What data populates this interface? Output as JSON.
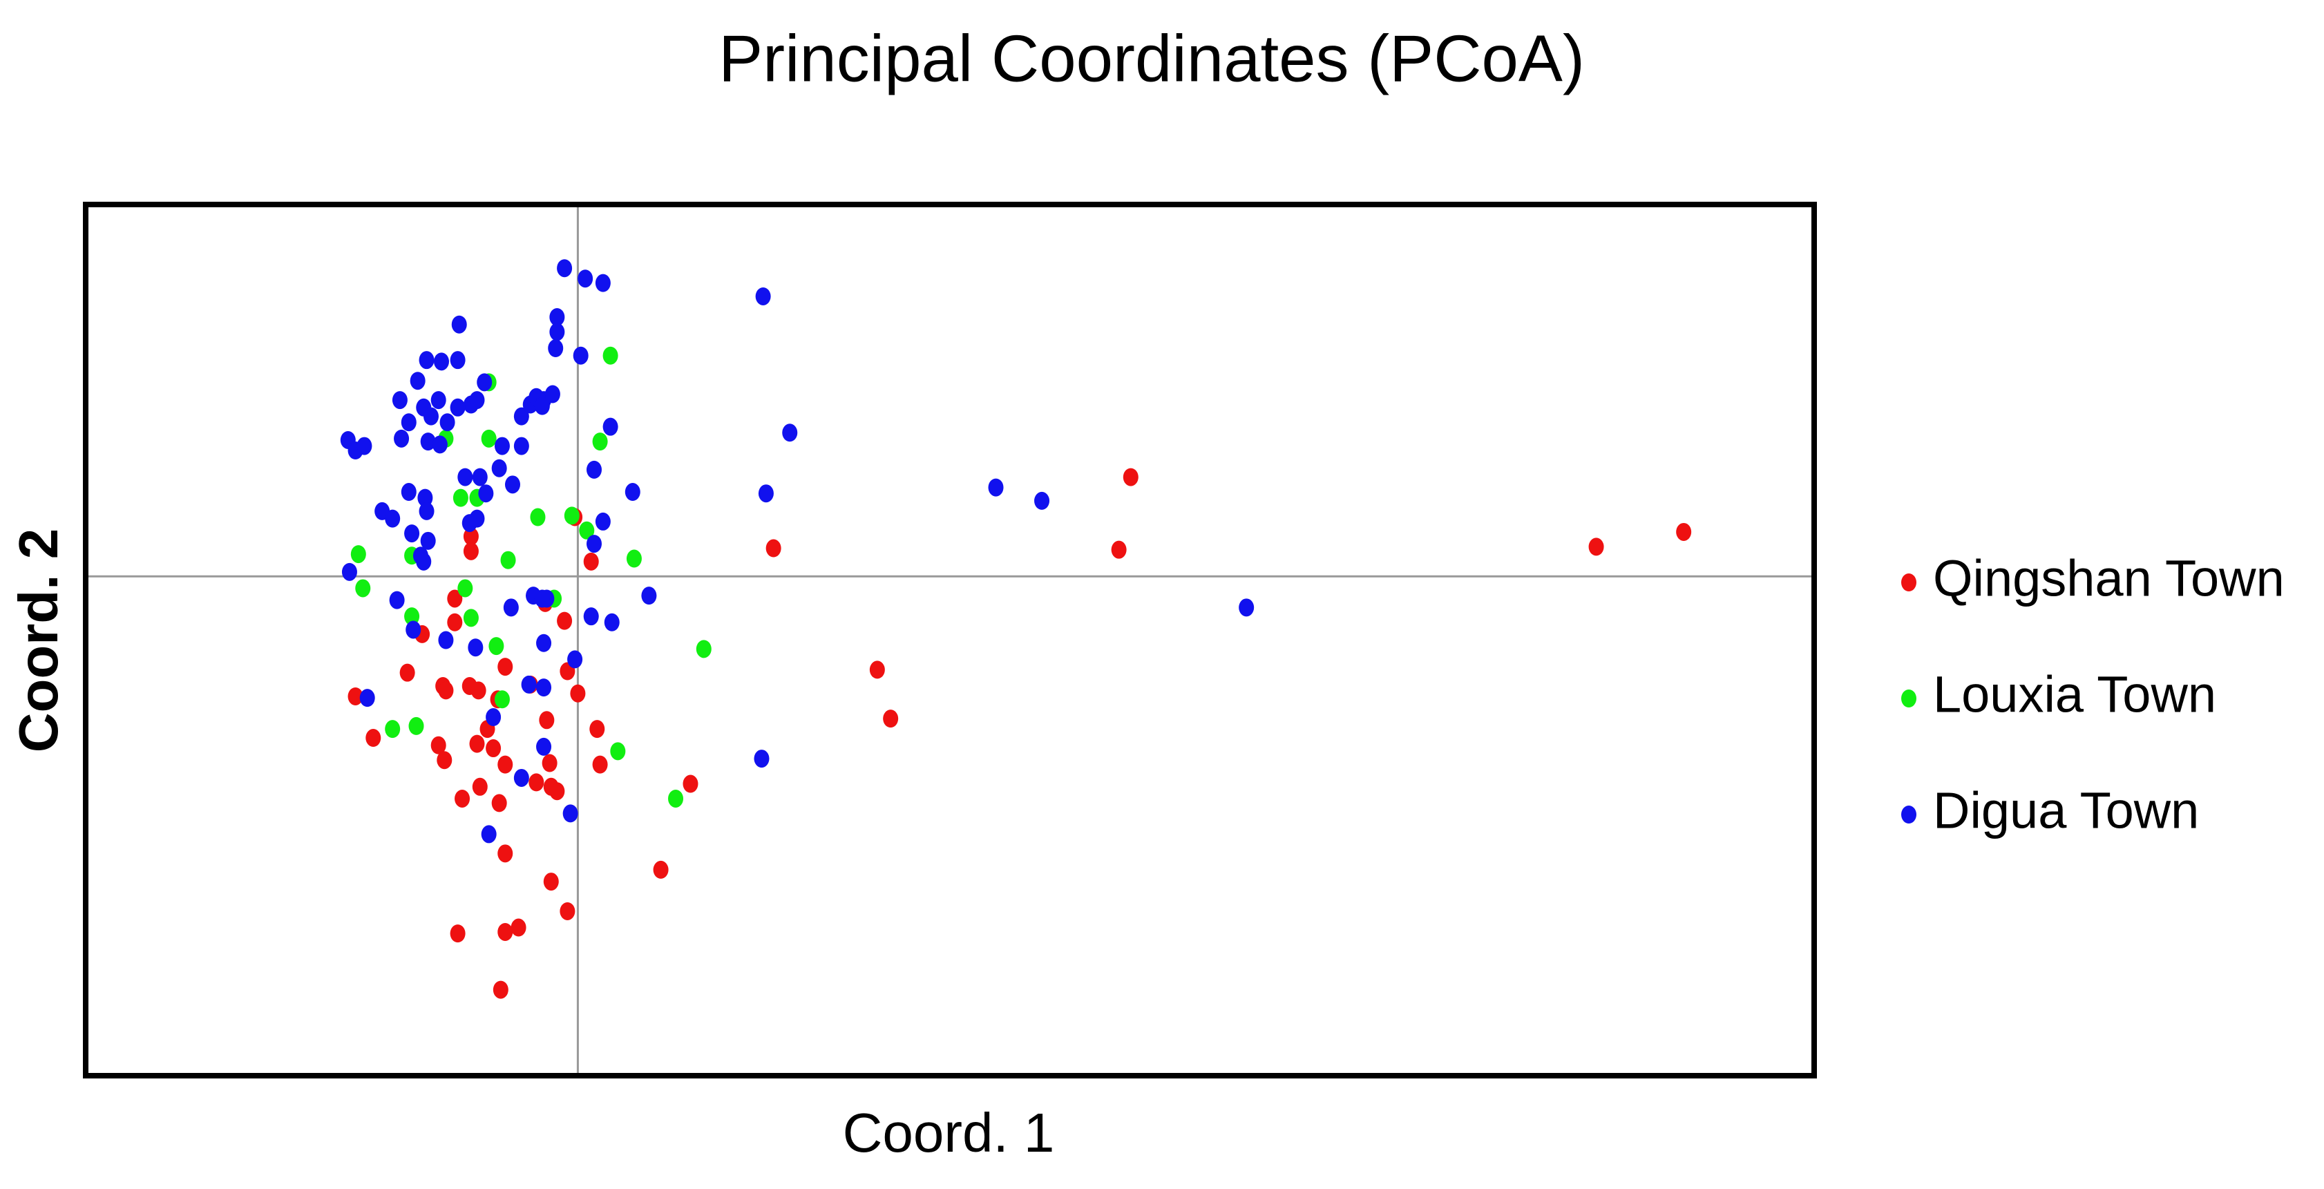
{
  "chart_data": {
    "type": "scatter",
    "title": "Principal Coordinates (PCoA)",
    "x_label": "Coord. 1",
    "y_label": "Coord. 2",
    "xlim": [
      -3.32,
      8.34
    ],
    "ylim": [
      -3.37,
      2.51
    ],
    "zero_lines": true,
    "legend": "right",
    "series": [
      {
        "name": "Qingshan Town",
        "color": "#ee1111",
        "x": [
          3.73,
          3.65,
          6.87,
          7.46,
          1.32,
          2.02,
          2.11,
          0.76,
          0.56,
          -0.72,
          -0.72,
          0.09,
          -0.02,
          -0.83,
          -0.83,
          -1.05,
          -1.15,
          -0.91,
          -0.89,
          -0.73,
          -0.67,
          -0.49,
          -0.32,
          -0.07,
          -0.09,
          0,
          -0.21,
          0.13,
          0.15,
          -0.19,
          -0.28,
          -0.18,
          -0.14,
          -0.49,
          -0.57,
          -0.68,
          -0.61,
          -0.94,
          -0.9,
          -0.78,
          -0.66,
          -0.53,
          -0.49,
          -0.18,
          -0.07,
          -0.4,
          -0.49,
          -0.81,
          -0.52,
          -1.5,
          -1.38,
          -0.22,
          -0.54
        ],
        "values": [
          0.67,
          0.18,
          0.2,
          0.3,
          0.19,
          -0.63,
          -0.96,
          -1.4,
          -1.98,
          0.27,
          0.17,
          0.1,
          0.4,
          -0.15,
          -0.31,
          -0.39,
          -0.65,
          -0.74,
          -0.77,
          -0.74,
          -0.77,
          -0.61,
          -0.73,
          -0.64,
          -0.3,
          -0.79,
          -0.97,
          -1.03,
          -1.27,
          -1.26,
          -1.39,
          -1.42,
          -1.45,
          -1.27,
          -1.16,
          -1.13,
          -1.03,
          -1.14,
          -1.24,
          -1.5,
          -1.42,
          -1.53,
          -1.87,
          -2.06,
          -2.26,
          -2.37,
          -2.4,
          -2.41,
          -2.79,
          -0.81,
          -1.09,
          -0.18,
          -0.83
        ]
      },
      {
        "name": "Louxia Town",
        "color": "#11ee11",
        "x": [
          0.22,
          -0.6,
          -0.6,
          -0.89,
          0.15,
          -0.79,
          -0.68,
          -0.27,
          -0.04,
          0.06,
          -0.47,
          0.38,
          -1.48,
          -1.12,
          -1.45,
          -0.76,
          -1.12,
          -0.72,
          -0.16,
          -0.55,
          0.85,
          -0.51,
          -1.25,
          -1.09,
          0.27,
          0.66
        ],
        "values": [
          1.49,
          1.31,
          0.93,
          0.93,
          0.91,
          0.53,
          0.53,
          0.4,
          0.41,
          0.31,
          0.11,
          0.12,
          0.15,
          0.14,
          -0.08,
          -0.08,
          -0.27,
          -0.28,
          -0.15,
          -0.47,
          -0.49,
          -0.83,
          -1.03,
          -1.01,
          -1.18,
          -1.5
        ]
      },
      {
        "name": "Digua Town",
        "color": "#1111ee",
        "x": [
          -0.09,
          0.05,
          0.17,
          1.25,
          -0.14,
          -0.14,
          -0.15,
          0.02,
          -0.8,
          -1.02,
          -0.92,
          -0.81,
          -0.63,
          -1.08,
          -1.2,
          -1.04,
          -0.94,
          -0.72,
          -0.81,
          -0.68,
          -1.14,
          -0.99,
          -0.88,
          -1.19,
          -1.01,
          -0.93,
          -1.55,
          -1.5,
          -1.44,
          -0.38,
          -0.32,
          -0.28,
          -0.23,
          -0.17,
          -0.24,
          -0.38,
          -0.51,
          -0.53,
          -0.44,
          -0.66,
          -0.76,
          -0.62,
          -1.14,
          -1.03,
          -1.32,
          -1.25,
          -1.02,
          -0.68,
          -1.12,
          -1.06,
          -1.01,
          -1.04,
          -1.54,
          -0.73,
          0.22,
          0.11,
          0.37,
          0.17,
          0.11,
          1.43,
          1.27,
          2.82,
          3.13,
          4.51,
          1.24,
          0.48,
          0.09,
          0.23,
          -0.21,
          -0.45,
          -0.3,
          -1.22,
          -1.11,
          -0.89,
          -0.69,
          -0.23,
          -0.02,
          -1.42,
          -0.23,
          -0.33,
          -0.57,
          -0.23,
          -0.38,
          -0.05,
          -0.6,
          -0.24
        ],
        "values": [
          2.08,
          2.01,
          1.98,
          1.89,
          1.75,
          1.65,
          1.54,
          1.49,
          1.7,
          1.46,
          1.45,
          1.46,
          1.31,
          1.32,
          1.19,
          1.14,
          1.19,
          1.16,
          1.14,
          1.19,
          1.04,
          1.08,
          1.04,
          0.93,
          0.91,
          0.89,
          0.92,
          0.85,
          0.88,
          1.08,
          1.16,
          1.21,
          1.19,
          1.23,
          1.15,
          0.88,
          0.88,
          0.73,
          0.62,
          0.67,
          0.67,
          0.56,
          0.57,
          0.53,
          0.44,
          0.39,
          0.44,
          0.39,
          0.29,
          0.14,
          0.24,
          0.1,
          0.03,
          0.36,
          1.01,
          0.72,
          0.57,
          0.37,
          0.22,
          0.97,
          0.56,
          0.6,
          0.51,
          -0.21,
          -1.23,
          -0.13,
          -0.27,
          -0.31,
          -0.15,
          -0.21,
          -0.13,
          -0.16,
          -0.36,
          -0.43,
          -0.48,
          -0.45,
          -0.56,
          -0.82,
          -0.75,
          -0.73,
          -0.95,
          -1.15,
          -1.36,
          -1.6,
          -1.74,
          -0.15
        ]
      }
    ]
  }
}
